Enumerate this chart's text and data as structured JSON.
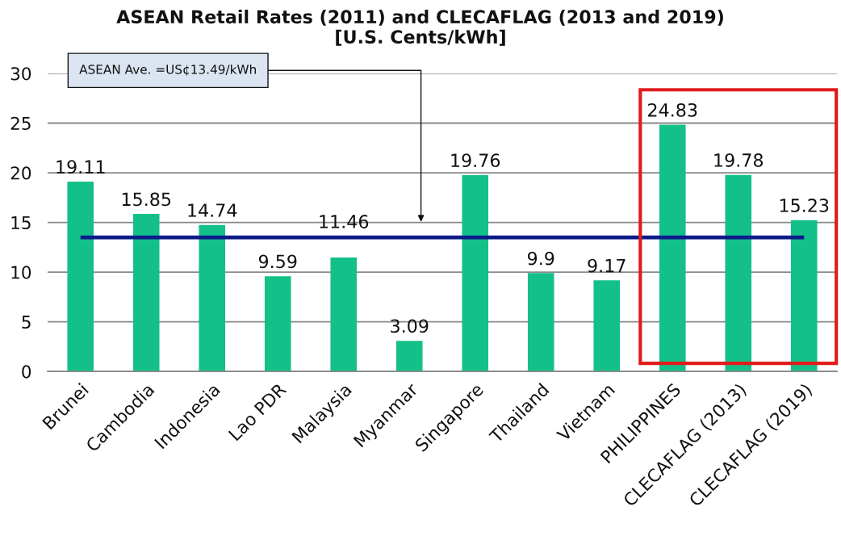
{
  "chart_data": {
    "type": "bar",
    "title": "ASEAN Retail Rates (2011) and CLECAFLAG (2013 and 2019)\n[U.S. Cents/kWh]",
    "categories": [
      "Brunei",
      "Cambodia",
      "Indonesia",
      "Lao PDR",
      "Malaysia",
      "Myanmar",
      "Singapore",
      "Thailand",
      "Vietnam",
      "PHILIPPINES",
      "CLECAFLAG (2013)",
      "CLECAFLAG (2019)"
    ],
    "values": [
      19.11,
      15.85,
      14.74,
      9.59,
      11.46,
      3.09,
      19.76,
      9.9,
      9.17,
      24.83,
      19.78,
      15.23
    ],
    "color": "#13c08a",
    "ylim": [
      0,
      30
    ],
    "yticks": [
      0,
      5,
      10,
      15,
      20,
      25,
      30
    ],
    "grid": "y",
    "data_labels": true,
    "ref_lines": [
      {
        "axis": "y",
        "value": 13.49,
        "color": "#0d1a8a"
      }
    ],
    "annotations": [
      "ASEAN Ave. =US¢13.49/kWh"
    ]
  }
}
